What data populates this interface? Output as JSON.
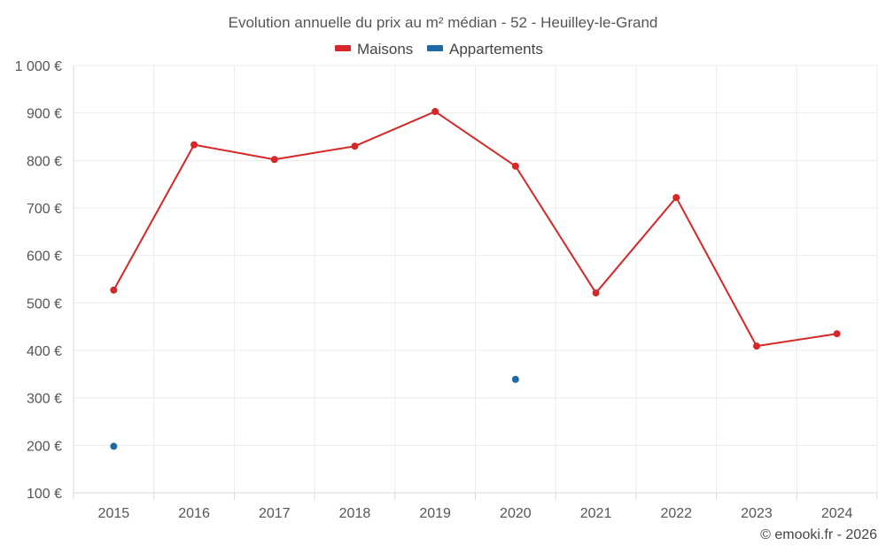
{
  "chart_data": {
    "type": "line",
    "title": "Evolution annuelle du prix au m² médian - 52 - Heuilley-le-Grand",
    "xlabel": "",
    "ylabel": "",
    "categories": [
      "2015",
      "2016",
      "2017",
      "2018",
      "2019",
      "2020",
      "2021",
      "2022",
      "2023",
      "2024"
    ],
    "ylim": [
      100,
      1000
    ],
    "yticks": [
      100,
      200,
      300,
      400,
      500,
      600,
      700,
      800,
      900,
      1000
    ],
    "ytick_labels": [
      "100 €",
      "200 €",
      "300 €",
      "400 €",
      "500 €",
      "600 €",
      "700 €",
      "800 €",
      "900 €",
      "1 000 €"
    ],
    "grid": true,
    "legend_position": "top-center",
    "series": [
      {
        "name": "Maisons",
        "color": "#d62728",
        "values": [
          527,
          833,
          802,
          830,
          903,
          788,
          521,
          722,
          409,
          435
        ]
      },
      {
        "name": "Appartements",
        "color": "#1f6aa5",
        "values": [
          198,
          null,
          null,
          null,
          null,
          339,
          null,
          null,
          null,
          null
        ]
      }
    ],
    "credit": "© emooki.fr - 2026"
  }
}
